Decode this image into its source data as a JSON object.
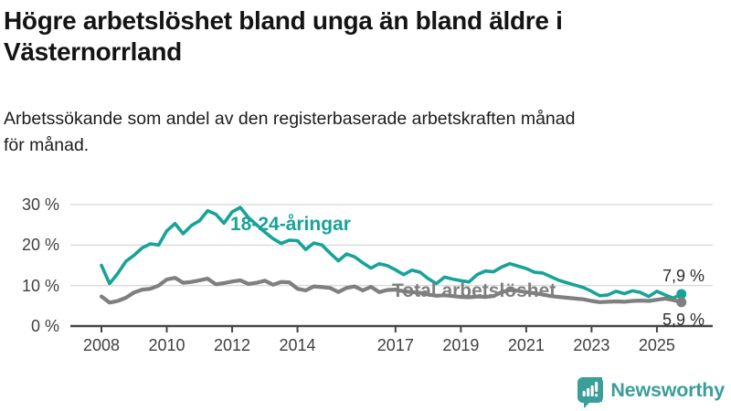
{
  "header": {
    "title": "Högre arbetslöshet bland unga än bland äldre i Västernorrland",
    "subtitle_lines": [
      "Arbetssökande som andel av den registerbaserade arbetskraften månad",
      "för månad."
    ]
  },
  "chart_data": {
    "type": "line",
    "title": "Högre arbetslöshet bland unga än bland äldre i Västernorrland",
    "subtitle": "Arbetssökande som andel av den registerbaserade arbetskraften månad för månad.",
    "grid": "horizontal",
    "legend_position": "inline-labels",
    "ylim": [
      0,
      30
    ],
    "xlim": [
      2007.5,
      2026.0
    ],
    "yticks": [
      {
        "value": 30,
        "label": "30 %"
      },
      {
        "value": 20,
        "label": "20 %"
      },
      {
        "value": 10,
        "label": "10 %"
      },
      {
        "value": 0,
        "label": "0 %"
      }
    ],
    "xticks": [
      {
        "value": 2008,
        "label": "2008"
      },
      {
        "value": 2010,
        "label": "2010"
      },
      {
        "value": 2012,
        "label": "2012"
      },
      {
        "value": 2014,
        "label": "2014"
      },
      {
        "value": 2017,
        "label": "2017"
      },
      {
        "value": 2019,
        "label": "2019"
      },
      {
        "value": 2021,
        "label": "2021"
      },
      {
        "value": 2023,
        "label": "2023"
      },
      {
        "value": 2025,
        "label": "2025"
      }
    ],
    "x": [
      2008.0,
      2008.25,
      2008.5,
      2008.75,
      2009.0,
      2009.25,
      2009.5,
      2009.75,
      2010.0,
      2010.25,
      2010.5,
      2010.75,
      2011.0,
      2011.25,
      2011.5,
      2011.75,
      2012.0,
      2012.25,
      2012.5,
      2012.75,
      2013.0,
      2013.25,
      2013.5,
      2013.75,
      2014.0,
      2014.25,
      2014.5,
      2014.75,
      2015.0,
      2015.25,
      2015.5,
      2015.75,
      2016.0,
      2016.25,
      2016.5,
      2016.75,
      2017.0,
      2017.25,
      2017.5,
      2017.75,
      2018.0,
      2018.25,
      2018.5,
      2018.75,
      2019.0,
      2019.25,
      2019.5,
      2019.75,
      2020.0,
      2020.25,
      2020.5,
      2020.75,
      2021.0,
      2021.25,
      2021.5,
      2021.75,
      2022.0,
      2022.25,
      2022.5,
      2022.75,
      2023.0,
      2023.25,
      2023.5,
      2023.75,
      2024.0,
      2024.25,
      2024.5,
      2024.75,
      2025.0,
      2025.25,
      2025.5,
      2025.75
    ],
    "series": [
      {
        "name": "18-24-åringar",
        "color": "#17a398",
        "line_width": 3.6,
        "end_value": 7.9,
        "end_label": "7,9 %",
        "values": [
          15.0,
          10.5,
          13.0,
          16.0,
          17.5,
          19.3,
          20.3,
          20.0,
          23.5,
          25.3,
          22.8,
          24.8,
          26.0,
          28.5,
          27.6,
          25.4,
          28.2,
          29.3,
          26.8,
          25.0,
          23.2,
          21.6,
          20.4,
          21.2,
          21.1,
          18.9,
          20.5,
          20.0,
          18.0,
          16.1,
          17.8,
          17.1,
          15.6,
          14.3,
          15.4,
          14.9,
          13.9,
          12.7,
          13.8,
          13.3,
          11.7,
          10.5,
          12.1,
          11.6,
          11.2,
          10.9,
          12.7,
          13.6,
          13.4,
          14.6,
          15.4,
          14.8,
          14.2,
          13.3,
          13.1,
          12.2,
          11.3,
          10.7,
          10.1,
          9.5,
          8.6,
          7.5,
          7.7,
          8.6,
          8.0,
          8.7,
          8.3,
          7.3,
          8.6,
          7.7,
          6.9,
          7.9
        ]
      },
      {
        "name": "Total arbetslöshet",
        "color": "#7f7f7f",
        "line_width": 4.2,
        "end_value": 5.9,
        "end_label": "5,9 %",
        "values": [
          7.3,
          5.8,
          6.2,
          7.0,
          8.3,
          9.0,
          9.2,
          10.0,
          11.5,
          11.9,
          10.7,
          10.9,
          11.3,
          11.7,
          10.3,
          10.6,
          11.0,
          11.3,
          10.4,
          10.7,
          11.2,
          10.2,
          10.9,
          10.8,
          9.2,
          8.8,
          9.8,
          9.6,
          9.4,
          8.4,
          9.4,
          9.8,
          8.8,
          9.7,
          8.4,
          8.9,
          9.0,
          8.6,
          8.4,
          8.2,
          7.8,
          7.5,
          7.6,
          7.4,
          7.2,
          7.1,
          7.3,
          7.2,
          7.4,
          8.4,
          8.9,
          8.7,
          8.4,
          8.1,
          7.8,
          7.4,
          7.2,
          7.0,
          6.8,
          6.6,
          6.2,
          5.9,
          6.0,
          6.1,
          6.0,
          6.2,
          6.3,
          6.2,
          6.5,
          6.8,
          6.4,
          5.9
        ]
      }
    ],
    "axis_color": "#454545",
    "grid_color": "#dcdcdc"
  },
  "branding": {
    "logo_text": "Newsworthy",
    "logo_color": "#3b9e9a",
    "logo_icon": "speech-bubble-bar-chart-icon"
  }
}
